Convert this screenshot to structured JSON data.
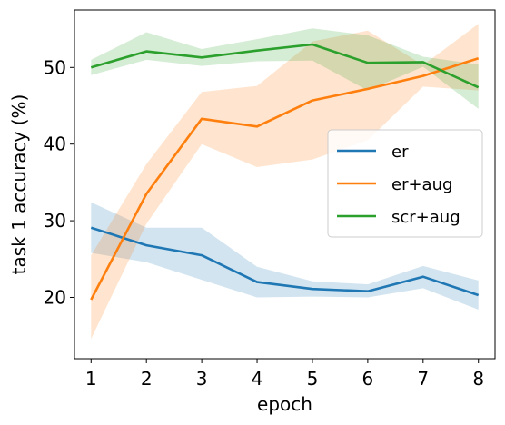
{
  "chart_data": {
    "type": "line",
    "title": "",
    "xlabel": "epoch",
    "ylabel": "task 1 accuracy (%)",
    "x": [
      1,
      2,
      3,
      4,
      5,
      6,
      7,
      8
    ],
    "xticks": [
      "1",
      "2",
      "3",
      "4",
      "5",
      "6",
      "7",
      "8"
    ],
    "yticks": [
      "20",
      "30",
      "40",
      "50"
    ],
    "xlim": [
      0.7,
      8.3
    ],
    "ylim": [
      12,
      57.5
    ],
    "grid": false,
    "legend_position": "center-right",
    "series": [
      {
        "name": "er",
        "color": "#1f77b4",
        "values": [
          29.1,
          26.8,
          25.5,
          22.0,
          21.1,
          20.8,
          22.7,
          20.3
        ],
        "lower": [
          25.8,
          24.6,
          22.3,
          20.0,
          20.1,
          20.0,
          21.2,
          18.4
        ],
        "upper": [
          32.4,
          29.1,
          29.1,
          24.0,
          22.1,
          21.7,
          24.1,
          22.2
        ]
      },
      {
        "name": "er+aug",
        "color": "#ff7f0e",
        "values": [
          19.7,
          33.5,
          43.3,
          42.3,
          45.7,
          47.2,
          48.9,
          51.2
        ],
        "lower": [
          14.6,
          29.6,
          40.0,
          37.0,
          38.0,
          40.5,
          47.5,
          47.0
        ],
        "upper": [
          25.5,
          37.4,
          46.8,
          47.6,
          53.4,
          54.8,
          50.3,
          55.7
        ]
      },
      {
        "name": "scr+aug",
        "color": "#2ca02c",
        "values": [
          50.0,
          52.1,
          51.3,
          52.2,
          53.0,
          50.6,
          50.7,
          47.4
        ],
        "lower": [
          49.0,
          51.0,
          50.2,
          50.8,
          50.9,
          47.0,
          50.1,
          44.6
        ],
        "upper": [
          51.0,
          54.6,
          52.4,
          53.7,
          55.1,
          54.2,
          51.4,
          50.4
        ]
      }
    ]
  }
}
